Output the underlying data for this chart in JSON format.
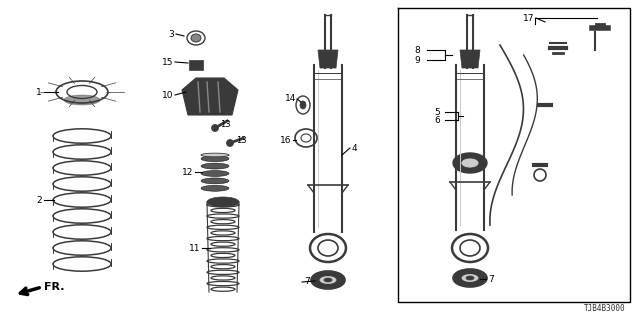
{
  "bg_color": "#ffffff",
  "diagram_code": "TJB4B3000",
  "fr_label": "FR.",
  "dark": "#3a3a3a",
  "gray": "#888888",
  "light_gray": "#cccccc",
  "black": "#000000"
}
